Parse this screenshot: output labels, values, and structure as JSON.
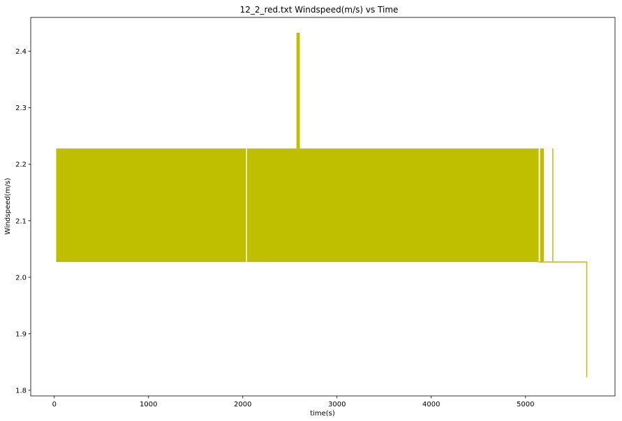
{
  "chart_data": {
    "type": "line",
    "title": "12_2_red.txt  Windspeed(m/s) vs Time",
    "xlabel": "time(s)",
    "ylabel": "Windspeed(m/s)",
    "xlim": [
      -250,
      5950
    ],
    "ylim": [
      1.79,
      2.46
    ],
    "xticks": [
      0,
      1000,
      2000,
      3000,
      4000,
      5000
    ],
    "yticks": [
      1.8,
      1.9,
      2.0,
      2.1,
      2.2,
      2.3,
      2.4
    ],
    "xtick_labels": [
      "0",
      "1000",
      "2000",
      "3000",
      "4000",
      "5000"
    ],
    "ytick_labels": [
      "1.8",
      "1.9",
      "2.0",
      "2.1",
      "2.2",
      "2.3",
      "2.4"
    ],
    "grid": false,
    "line_color": "#bfbf00",
    "series": [
      {
        "low": 2.027,
        "high": 2.228,
        "oscillating_ranges": [
          [
            20,
            2035
          ],
          [
            2045,
            5140
          ],
          [
            5160,
            5195
          ]
        ],
        "points": [
          [
            2575,
            2.228
          ],
          [
            2575,
            2.432
          ],
          [
            2585,
            2.432
          ],
          [
            2585,
            2.228
          ],
          [
            2595,
            2.228
          ],
          [
            2595,
            2.432
          ],
          [
            2600,
            2.432
          ],
          [
            2600,
            2.228
          ],
          [
            5140,
            2.027
          ],
          [
            5160,
            2.027
          ],
          [
            5160,
            2.228
          ],
          [
            5160,
            2.027
          ],
          [
            5195,
            2.027
          ],
          [
            5290,
            2.027
          ],
          [
            5290,
            2.228
          ],
          [
            5290,
            2.027
          ],
          [
            5650,
            2.027
          ],
          [
            5650,
            1.823
          ]
        ]
      }
    ]
  }
}
